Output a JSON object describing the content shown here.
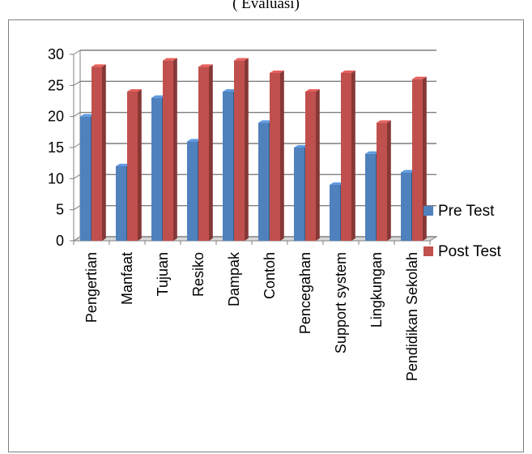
{
  "caption": "( Evaluasi)",
  "chart_data": {
    "type": "bar",
    "categories": [
      "Pengertian",
      "Manfaat",
      "Tujuan",
      "Resiko",
      "Dampak",
      "Contoh",
      "Pencegahan",
      "Support system",
      "Lingkungan",
      "Pendidikan Sekolah"
    ],
    "series": [
      {
        "name": "Pre Test",
        "values": [
          20,
          12,
          23,
          16,
          24,
          19,
          15,
          9,
          14,
          11
        ],
        "color": "#4f81bd"
      },
      {
        "name": "Post Test",
        "values": [
          28,
          24,
          29,
          28,
          29,
          27,
          24,
          27,
          19,
          26
        ],
        "color": "#c0504d"
      }
    ],
    "yticks": [
      0,
      5,
      10,
      15,
      20,
      25,
      30
    ],
    "ylim": [
      0,
      30
    ],
    "grid": true,
    "legend": "right",
    "style": "3d-clustered-column"
  }
}
